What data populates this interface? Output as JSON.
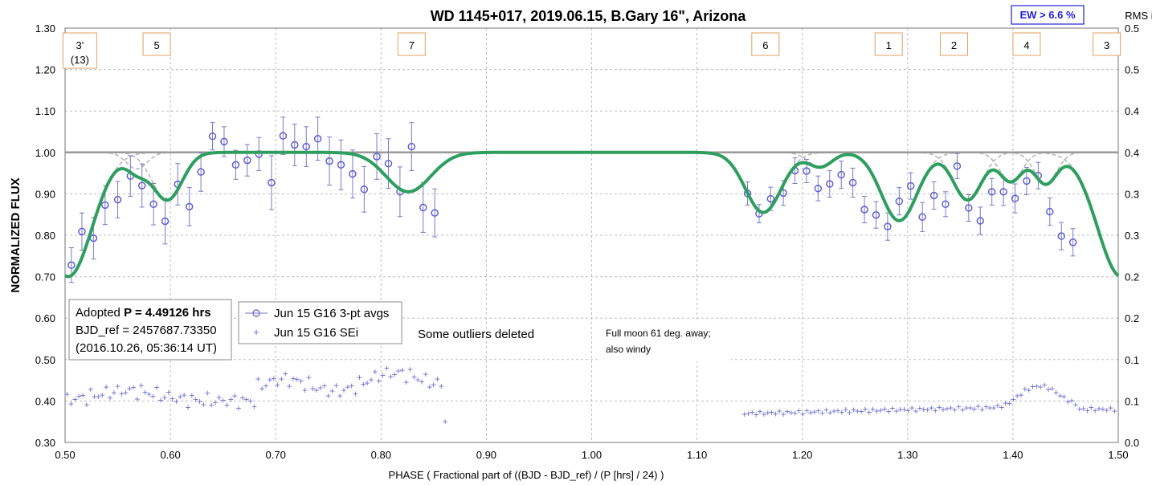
{
  "chart_data": {
    "type": "scatter",
    "title": "WD 1145+017, 2019.06.15, B.Gary 16\", Arizona",
    "xlabel": "PHASE ( Fractional part of ((BJD - BJD_ref) / (P [hrs] / 24) )",
    "ylabel": "NORMALIZED FLUX",
    "y2label": "RMS i",
    "xlim": [
      0.5,
      1.5
    ],
    "ylim": [
      0.3,
      1.3
    ],
    "y2lim": [
      0.0,
      0.5
    ],
    "x_ticks": [
      "0.50",
      "0.60",
      "0.70",
      "0.80",
      "0.90",
      "1.00",
      "1.10",
      "1.20",
      "1.30",
      "1.40",
      "1.50"
    ],
    "y_ticks": [
      "0.30",
      "0.40",
      "0.50",
      "0.60",
      "0.70",
      "0.80",
      "0.90",
      "1.00",
      "1.10",
      "1.20",
      "1.30"
    ],
    "y2_ticks": [
      "0.0",
      "0.1",
      "0.1",
      "0.2",
      "0.2",
      "0.3",
      "0.3",
      "0.4",
      "0.4",
      "0.5",
      "0.5"
    ],
    "grid": true,
    "ew_box": "EW > 6.6 %",
    "adopted_box": {
      "line1_prefix": "Adopted ",
      "line1_bold": "P = 4.49126 hrs",
      "line2": "BJD_ref = 2457687.73350",
      "line3": "(2016.10.26, 05:36:14 UT)"
    },
    "legend": {
      "placement": "middle-left",
      "entries": [
        "Jun 15 G16 3-pt avgs",
        "Jun 15 G16 SEi"
      ]
    },
    "annotations": {
      "outliers": "Some outliers deleted",
      "moon_line1": "Full moon 61 deg. away;",
      "moon_line2": "also windy"
    },
    "dip_labels": [
      {
        "text": "3'",
        "sub": "(13)",
        "x": 0.514
      },
      {
        "text": "5",
        "x": 0.587
      },
      {
        "text": "7",
        "x": 0.829
      },
      {
        "text": "6",
        "x": 1.165
      },
      {
        "text": "1",
        "x": 1.282
      },
      {
        "text": "2",
        "x": 1.344
      },
      {
        "text": "4",
        "x": 1.413
      },
      {
        "text": "3",
        "x": 1.489
      }
    ],
    "model_dips": [
      {
        "center": 0.597,
        "depth": 0.115,
        "width": 0.02
      },
      {
        "center": 0.568,
        "depth": 0.04,
        "width": 0.014
      },
      {
        "center": 0.826,
        "depth": 0.095,
        "width": 0.03
      },
      {
        "center": 1.163,
        "depth": 0.145,
        "width": 0.024
      },
      {
        "center": 1.217,
        "depth": 0.035,
        "width": 0.016
      },
      {
        "center": 1.292,
        "depth": 0.165,
        "width": 0.024
      },
      {
        "center": 1.357,
        "depth": 0.115,
        "width": 0.019
      },
      {
        "center": 1.398,
        "depth": 0.07,
        "width": 0.015
      },
      {
        "center": 1.431,
        "depth": 0.075,
        "width": 0.015
      },
      {
        "center": 1.503,
        "depth": 0.3,
        "width": 0.032
      },
      {
        "center": 0.503,
        "depth": 0.3,
        "width": 0.032
      }
    ],
    "series": [
      {
        "name": "Jun 15 G16 3-pt avgs",
        "points": [
          {
            "x": 0.506,
            "y": 0.728,
            "err": 0.042
          },
          {
            "x": 0.516,
            "y": 0.809,
            "err": 0.045
          },
          {
            "x": 0.527,
            "y": 0.793,
            "err": 0.05
          },
          {
            "x": 0.538,
            "y": 0.873,
            "err": 0.047
          },
          {
            "x": 0.55,
            "y": 0.886,
            "err": 0.044
          },
          {
            "x": 0.562,
            "y": 0.943,
            "err": 0.049
          },
          {
            "x": 0.573,
            "y": 0.92,
            "err": 0.052
          },
          {
            "x": 0.584,
            "y": 0.875,
            "err": 0.05
          },
          {
            "x": 0.595,
            "y": 0.834,
            "err": 0.055
          },
          {
            "x": 0.607,
            "y": 0.923,
            "err": 0.05
          },
          {
            "x": 0.618,
            "y": 0.869,
            "err": 0.046
          },
          {
            "x": 0.629,
            "y": 0.953,
            "err": 0.047
          },
          {
            "x": 0.64,
            "y": 1.039,
            "err": 0.033
          },
          {
            "x": 0.651,
            "y": 1.026,
            "err": 0.036
          },
          {
            "x": 0.662,
            "y": 0.97,
            "err": 0.035
          },
          {
            "x": 0.673,
            "y": 0.981,
            "err": 0.038
          },
          {
            "x": 0.684,
            "y": 0.996,
            "err": 0.04
          },
          {
            "x": 0.696,
            "y": 0.927,
            "err": 0.065
          },
          {
            "x": 0.707,
            "y": 1.04,
            "err": 0.045
          },
          {
            "x": 0.718,
            "y": 1.018,
            "err": 0.05
          },
          {
            "x": 0.729,
            "y": 1.014,
            "err": 0.048
          },
          {
            "x": 0.74,
            "y": 1.033,
            "err": 0.052
          },
          {
            "x": 0.751,
            "y": 0.979,
            "err": 0.058
          },
          {
            "x": 0.762,
            "y": 0.97,
            "err": 0.06
          },
          {
            "x": 0.773,
            "y": 0.948,
            "err": 0.058
          },
          {
            "x": 0.784,
            "y": 0.911,
            "err": 0.055
          },
          {
            "x": 0.796,
            "y": 0.99,
            "err": 0.055
          },
          {
            "x": 0.807,
            "y": 0.973,
            "err": 0.06
          },
          {
            "x": 0.818,
            "y": 0.905,
            "err": 0.06
          },
          {
            "x": 0.829,
            "y": 1.014,
            "err": 0.058
          },
          {
            "x": 0.84,
            "y": 0.867,
            "err": 0.06
          },
          {
            "x": 0.851,
            "y": 0.854,
            "err": 0.058
          },
          {
            "x": 1.148,
            "y": 0.901,
            "err": 0.028
          },
          {
            "x": 1.159,
            "y": 0.852,
            "err": 0.022
          },
          {
            "x": 1.17,
            "y": 0.888,
            "err": 0.028
          },
          {
            "x": 1.182,
            "y": 0.902,
            "err": 0.03
          },
          {
            "x": 1.193,
            "y": 0.956,
            "err": 0.031
          },
          {
            "x": 1.204,
            "y": 0.955,
            "err": 0.028
          },
          {
            "x": 1.215,
            "y": 0.913,
            "err": 0.03
          },
          {
            "x": 1.226,
            "y": 0.924,
            "err": 0.032
          },
          {
            "x": 1.237,
            "y": 0.946,
            "err": 0.033
          },
          {
            "x": 1.248,
            "y": 0.927,
            "err": 0.035
          },
          {
            "x": 1.259,
            "y": 0.862,
            "err": 0.032
          },
          {
            "x": 1.27,
            "y": 0.849,
            "err": 0.032
          },
          {
            "x": 1.281,
            "y": 0.821,
            "err": 0.033
          },
          {
            "x": 1.292,
            "y": 0.882,
            "err": 0.033
          },
          {
            "x": 1.303,
            "y": 0.919,
            "err": 0.032
          },
          {
            "x": 1.314,
            "y": 0.844,
            "err": 0.035
          },
          {
            "x": 1.325,
            "y": 0.896,
            "err": 0.033
          },
          {
            "x": 1.336,
            "y": 0.875,
            "err": 0.03
          },
          {
            "x": 1.347,
            "y": 0.967,
            "err": 0.03
          },
          {
            "x": 1.358,
            "y": 0.866,
            "err": 0.032
          },
          {
            "x": 1.369,
            "y": 0.835,
            "err": 0.033
          },
          {
            "x": 1.38,
            "y": 0.905,
            "err": 0.032
          },
          {
            "x": 1.391,
            "y": 0.905,
            "err": 0.033
          },
          {
            "x": 1.402,
            "y": 0.889,
            "err": 0.035
          },
          {
            "x": 1.413,
            "y": 0.931,
            "err": 0.033
          },
          {
            "x": 1.424,
            "y": 0.944,
            "err": 0.032
          },
          {
            "x": 1.435,
            "y": 0.857,
            "err": 0.033
          },
          {
            "x": 1.446,
            "y": 0.798,
            "err": 0.033
          },
          {
            "x": 1.457,
            "y": 0.783,
            "err": 0.033
          }
        ]
      },
      {
        "name": "Jun 15 G16 SEi",
        "x_ranges": [
          [
            0.502,
            0.862
          ],
          [
            1.145,
            1.5
          ]
        ]
      }
    ]
  }
}
